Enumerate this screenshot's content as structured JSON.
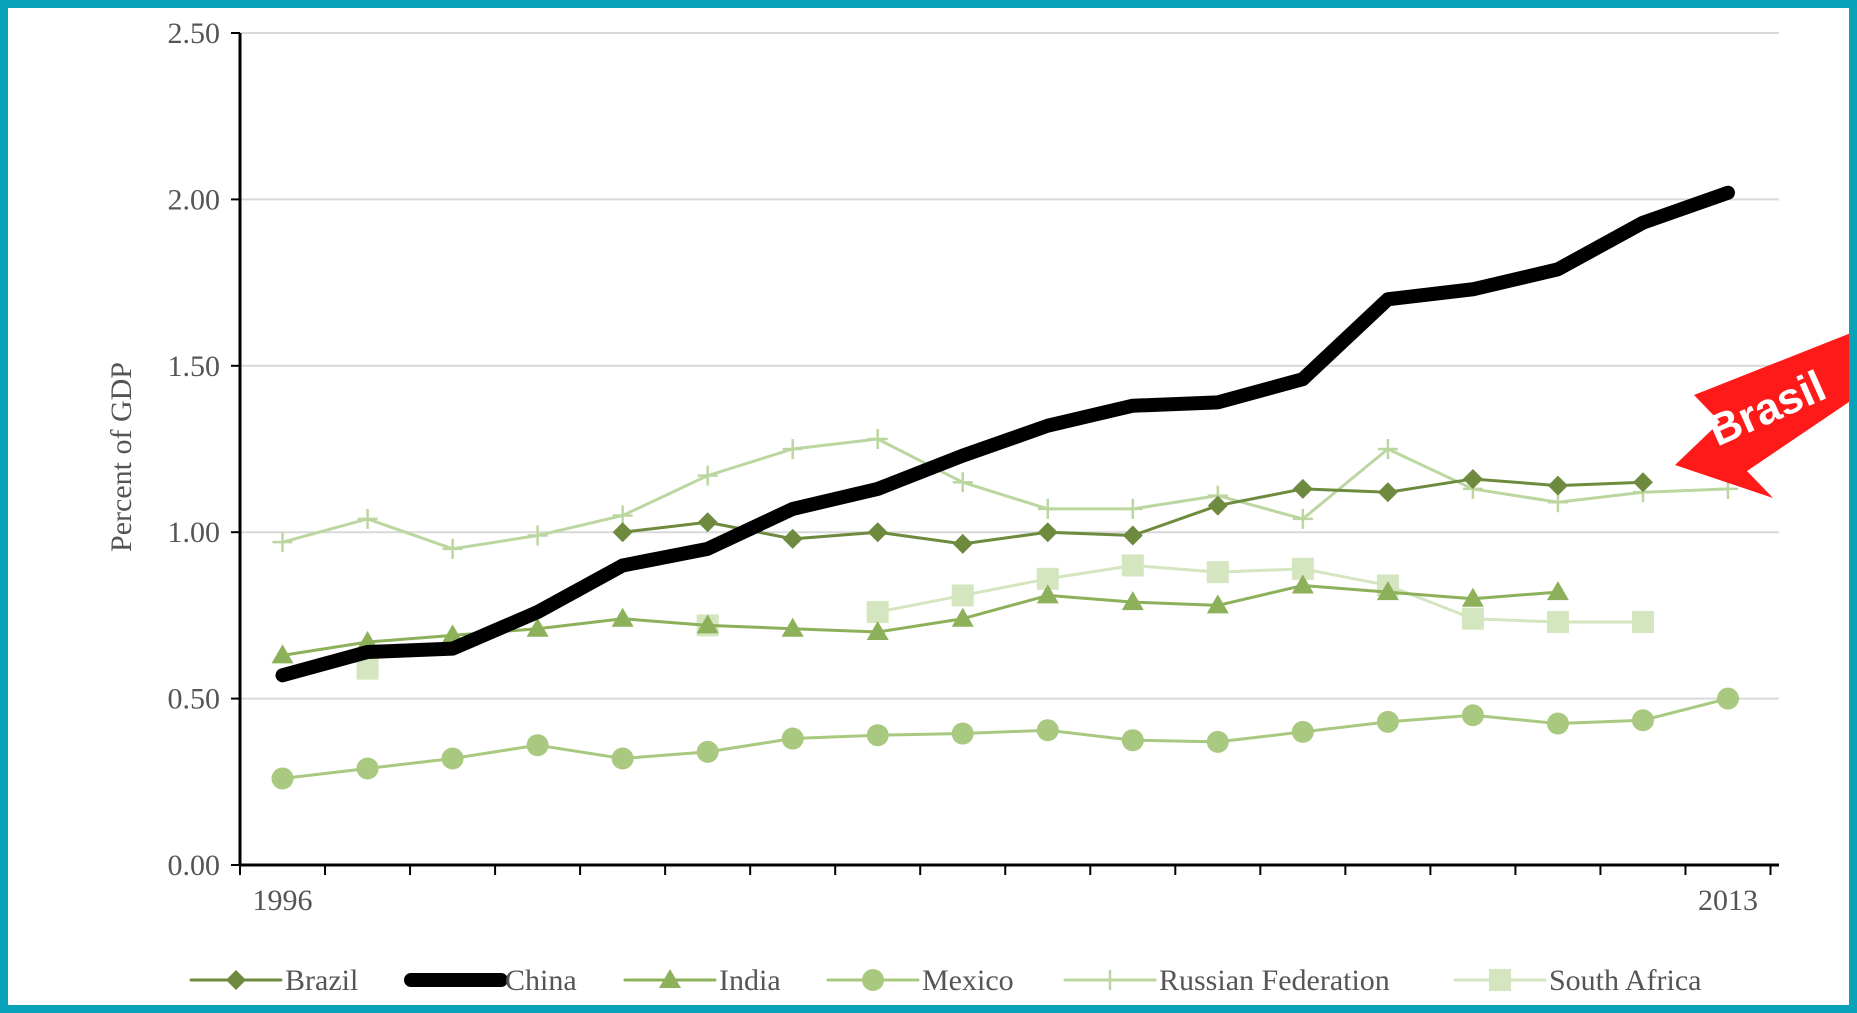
{
  "chart_data": {
    "type": "line",
    "title": "",
    "xlabel": "",
    "ylabel": "Percent of GDP",
    "ylim": [
      0,
      2.5
    ],
    "y_ticks": [
      "0.00",
      "0.50",
      "1.00",
      "1.50",
      "2.00",
      "2.50"
    ],
    "x": [
      1996,
      1997,
      1998,
      1999,
      2000,
      2001,
      2002,
      2003,
      2004,
      2005,
      2006,
      2007,
      2008,
      2009,
      2010,
      2011,
      2012,
      2013
    ],
    "x_tick_labels": [
      "1996",
      "2013"
    ],
    "grid": "horizontal",
    "legend_position": "bottom",
    "series": [
      {
        "name": "Brazil",
        "color": "#6e8a3e",
        "marker": "diamond",
        "values": [
          null,
          null,
          null,
          null,
          1.0,
          1.03,
          0.98,
          1.0,
          0.965,
          1.0,
          0.99,
          1.08,
          1.13,
          1.12,
          1.16,
          1.14,
          1.15,
          null
        ]
      },
      {
        "name": "China",
        "color": "#000000",
        "marker": "none",
        "values": [
          0.57,
          0.64,
          0.65,
          0.76,
          0.9,
          0.95,
          1.07,
          1.13,
          1.23,
          1.32,
          1.38,
          1.39,
          1.46,
          1.7,
          1.73,
          1.79,
          1.93,
          2.02
        ]
      },
      {
        "name": "India",
        "color": "#8db05a",
        "marker": "triangle",
        "values": [
          0.63,
          0.67,
          0.69,
          0.71,
          0.74,
          0.72,
          0.71,
          0.7,
          0.74,
          0.81,
          0.79,
          0.78,
          0.84,
          0.82,
          0.8,
          0.82,
          null,
          null
        ]
      },
      {
        "name": "Mexico",
        "color": "#a8c97f",
        "marker": "circle",
        "values": [
          0.26,
          0.29,
          0.32,
          0.36,
          0.32,
          0.34,
          0.38,
          0.39,
          0.395,
          0.405,
          0.375,
          0.37,
          0.4,
          0.43,
          0.45,
          0.425,
          0.435,
          0.5
        ]
      },
      {
        "name": "Russian Federation",
        "color": "#bcd6a0",
        "marker": "plus",
        "values": [
          0.97,
          1.04,
          0.95,
          0.99,
          1.05,
          1.17,
          1.25,
          1.28,
          1.15,
          1.07,
          1.07,
          1.11,
          1.04,
          1.25,
          1.13,
          1.09,
          1.12,
          1.13
        ]
      },
      {
        "name": "South Africa",
        "color": "#d3e6bf",
        "marker": "square",
        "values": [
          null,
          0.59,
          null,
          null,
          null,
          0.72,
          null,
          0.76,
          0.81,
          0.86,
          0.9,
          0.88,
          0.89,
          0.84,
          0.74,
          0.73,
          0.73,
          null
        ]
      }
    ],
    "annotations": [
      {
        "text": "Brasil",
        "kind": "arrow",
        "color": "#ff1a1a",
        "points_to": "Brazil"
      }
    ]
  }
}
